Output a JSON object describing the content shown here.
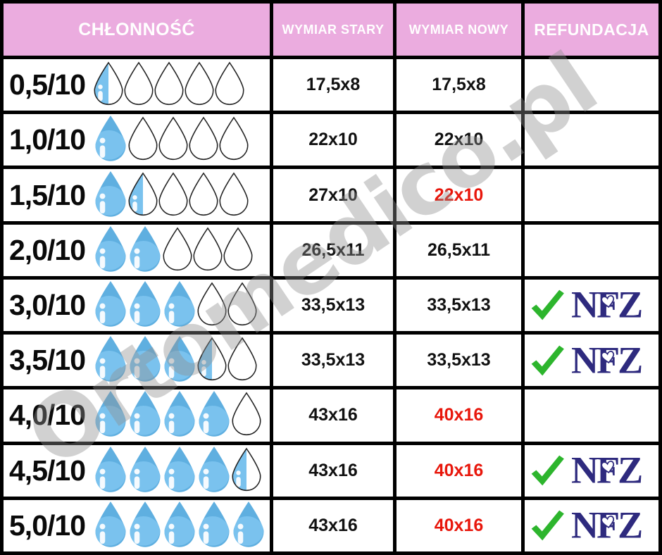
{
  "chart_data": {
    "type": "table",
    "columns": [
      "CHŁONNOŚĆ",
      "WYMIAR STARY",
      "WYMIAR NOWY",
      "REFUNDACJA"
    ],
    "rows": [
      {
        "absorbency": "0,5/10",
        "drops_full": 0,
        "drops_half": 1,
        "drops_empty": 4,
        "wymiar_stary": "17,5x8",
        "wymiar_nowy": "17,5x8",
        "nowy_changed": false,
        "refundacja": false
      },
      {
        "absorbency": "1,0/10",
        "drops_full": 1,
        "drops_half": 0,
        "drops_empty": 4,
        "wymiar_stary": "22x10",
        "wymiar_nowy": "22x10",
        "nowy_changed": false,
        "refundacja": false
      },
      {
        "absorbency": "1,5/10",
        "drops_full": 1,
        "drops_half": 1,
        "drops_empty": 3,
        "wymiar_stary": "27x10",
        "wymiar_nowy": "22x10",
        "nowy_changed": true,
        "refundacja": false
      },
      {
        "absorbency": "2,0/10",
        "drops_full": 2,
        "drops_half": 0,
        "drops_empty": 3,
        "wymiar_stary": "26,5x11",
        "wymiar_nowy": "26,5x11",
        "nowy_changed": false,
        "refundacja": false
      },
      {
        "absorbency": "3,0/10",
        "drops_full": 3,
        "drops_half": 0,
        "drops_empty": 2,
        "wymiar_stary": "33,5x13",
        "wymiar_nowy": "33,5x13",
        "nowy_changed": false,
        "refundacja": true
      },
      {
        "absorbency": "3,5/10",
        "drops_full": 3,
        "drops_half": 1,
        "drops_empty": 1,
        "wymiar_stary": "33,5x13",
        "wymiar_nowy": "33,5x13",
        "nowy_changed": false,
        "refundacja": true
      },
      {
        "absorbency": "4,0/10",
        "drops_full": 4,
        "drops_half": 0,
        "drops_empty": 1,
        "wymiar_stary": "43x16",
        "wymiar_nowy": "40x16",
        "nowy_changed": true,
        "refundacja": false
      },
      {
        "absorbency": "4,5/10",
        "drops_full": 4,
        "drops_half": 1,
        "drops_empty": 0,
        "wymiar_stary": "43x16",
        "wymiar_nowy": "40x16",
        "nowy_changed": true,
        "refundacja": true
      },
      {
        "absorbency": "5,0/10",
        "drops_full": 5,
        "drops_half": 0,
        "drops_empty": 0,
        "wymiar_stary": "43x16",
        "wymiar_nowy": "40x16",
        "nowy_changed": true,
        "refundacja": true
      }
    ]
  },
  "refund": {
    "check_icon": "green-checkmark-icon",
    "nfz_label": "NFZ"
  },
  "icons": {
    "drop_full": "filled-water-drop-icon",
    "drop_half": "half-filled-water-drop-icon",
    "drop_empty": "empty-water-drop-icon"
  },
  "watermark": {
    "text": "Ortomedico.pl"
  },
  "colors": {
    "border": "#000000",
    "header_bg": "#ebacdf",
    "header_text": "#ffffff",
    "cell_bg": "#ffffff",
    "text": "#111111",
    "highlight_red": "#e8170c",
    "drop_blue": "#7ac2ee",
    "drop_blue_dark": "#5fafe0",
    "nfz_navy": "#2e2a7e",
    "check_green": "#2db52d",
    "watermark_gray": "#8f8f8f"
  }
}
